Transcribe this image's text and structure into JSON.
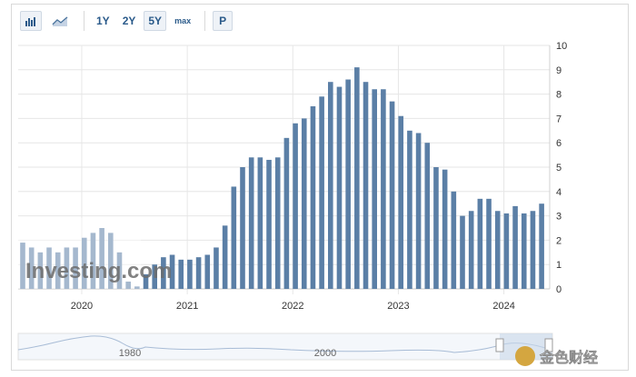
{
  "toolbar": {
    "bar_chart_icon": "bar-chart-icon",
    "line_chart_icon": "line-chart-icon",
    "range_1y": "1Y",
    "range_2y": "2Y",
    "range_5y": "5Y",
    "range_max": "max",
    "p_button": "P",
    "active_range": "5Y"
  },
  "watermark": {
    "logo": "Investing.com",
    "corner_logo": "金色财经"
  },
  "navigator": {
    "labels": [
      "1980",
      "2000"
    ]
  },
  "colors": {
    "bar": "#5b7fa6",
    "bar_light": "#b9cbe0",
    "grid": "#e6e6e6",
    "accent": "#2a5a8a"
  },
  "chart_data": {
    "type": "bar",
    "x_start": "2019-06",
    "interval": "month",
    "x_ticks": [
      "2020",
      "2021",
      "2022",
      "2023",
      "2024"
    ],
    "x_tick_dates": [
      "2020-01",
      "2021-01",
      "2022-01",
      "2023-01",
      "2024-01"
    ],
    "ylim": [
      0,
      10
    ],
    "y_ticks": [
      "0",
      "1",
      "2",
      "3",
      "4",
      "5",
      "6",
      "7",
      "8",
      "9",
      "10"
    ],
    "grid": true,
    "values": [
      1.9,
      1.7,
      1.5,
      1.7,
      1.5,
      1.7,
      1.7,
      2.1,
      2.3,
      2.5,
      2.3,
      1.5,
      0.3,
      0.1,
      0.6,
      1.0,
      1.3,
      1.4,
      1.2,
      1.2,
      1.3,
      1.4,
      1.7,
      2.6,
      4.2,
      5.0,
      5.4,
      5.4,
      5.3,
      5.4,
      6.2,
      6.8,
      7.0,
      7.5,
      7.9,
      8.5,
      8.3,
      8.6,
      9.1,
      8.5,
      8.2,
      8.2,
      7.7,
      7.1,
      6.5,
      6.4,
      6.0,
      5.0,
      4.9,
      4.0,
      3.0,
      3.2,
      3.7,
      3.7,
      3.2,
      3.1,
      3.4,
      3.1,
      3.2,
      3.5
    ]
  }
}
